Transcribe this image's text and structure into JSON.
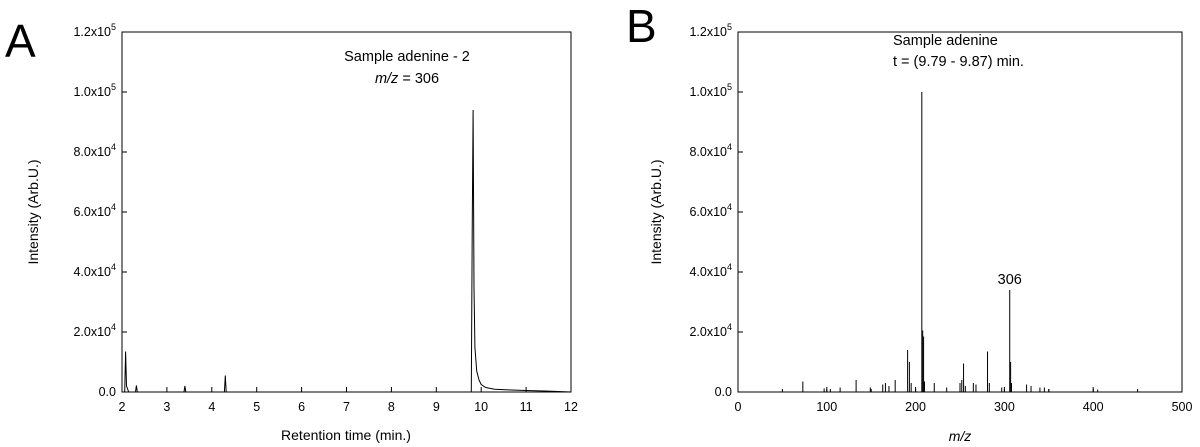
{
  "chart_data": [
    {
      "panel": "A",
      "type": "line",
      "title_lines": [
        "Sample adenine - 2",
        "m/z = 306"
      ],
      "xlabel": "Retention time (min.)",
      "ylabel": "Intensity (Arb.U.)",
      "xlim": [
        2,
        12
      ],
      "ylim": [
        0,
        120000
      ],
      "x_ticks": [
        "2",
        "3",
        "4",
        "5",
        "6",
        "7",
        "8",
        "9",
        "10",
        "11",
        "12"
      ],
      "y_ticks": [
        {
          "value": 0,
          "label": "0.0"
        },
        {
          "value": 20000,
          "label": "2.0x10",
          "exp": "4"
        },
        {
          "value": 40000,
          "label": "4.0x10",
          "exp": "4"
        },
        {
          "value": 60000,
          "label": "6.0x10",
          "exp": "4"
        },
        {
          "value": 80000,
          "label": "8.0x10",
          "exp": "4"
        },
        {
          "value": 100000,
          "label": "1.0x10",
          "exp": "5"
        },
        {
          "value": 120000,
          "label": "1.2x10",
          "exp": "5"
        }
      ],
      "series": [
        {
          "x": [
            2.0,
            2.06,
            2.08,
            2.1,
            2.15,
            2.3,
            2.32,
            2.34,
            3.38,
            3.4,
            3.42,
            4.28,
            4.3,
            4.32,
            4.6,
            9.78,
            9.8,
            9.82,
            9.84,
            9.86,
            9.9,
            9.95,
            10.0,
            10.1,
            10.3,
            10.6,
            11.0,
            11.5,
            12.0
          ],
          "y": [
            0,
            0,
            13500,
            2000,
            0,
            0,
            2200,
            0,
            0,
            2000,
            0,
            0,
            5500,
            0,
            0,
            0,
            53000,
            94000,
            35000,
            15000,
            7000,
            4000,
            2500,
            1500,
            900,
            700,
            500,
            300,
            0
          ]
        }
      ]
    },
    {
      "panel": "B",
      "type": "bar",
      "title_lines": [
        "Sample adenine",
        "t = (9.79 - 9.87) min."
      ],
      "annotation": {
        "text": "306",
        "x": 306,
        "y": 34000
      },
      "xlabel": "m/z",
      "ylabel": "Intensity (Arb.U.)",
      "xlim": [
        0,
        500
      ],
      "ylim": [
        0,
        120000
      ],
      "x_ticks": [
        "0",
        "100",
        "200",
        "300",
        "400",
        "500"
      ],
      "y_ticks": [
        {
          "value": 0,
          "label": "0.0"
        },
        {
          "value": 20000,
          "label": "2.0x10",
          "exp": "4"
        },
        {
          "value": 40000,
          "label": "4.0x10",
          "exp": "4"
        },
        {
          "value": 60000,
          "label": "6.0x10",
          "exp": "4"
        },
        {
          "value": 80000,
          "label": "8.0x10",
          "exp": "4"
        },
        {
          "value": 100000,
          "label": "1.0x10",
          "exp": "5"
        },
        {
          "value": 120000,
          "label": "1.2x10",
          "exp": "5"
        }
      ],
      "peaks": {
        "mz": [
          73,
          97,
          104,
          115,
          133,
          149,
          163,
          166,
          170,
          177,
          191,
          193,
          195,
          207,
          208,
          209,
          210,
          221,
          235,
          250,
          252,
          254,
          256,
          265,
          268,
          281,
          283,
          297,
          306,
          307,
          308,
          325,
          330,
          340,
          345,
          350,
          405
        ],
        "intensity": [
          3500,
          1200,
          1000,
          1500,
          4000,
          1500,
          2500,
          3000,
          2000,
          4000,
          14000,
          10000,
          3000,
          100000,
          20500,
          18500,
          3500,
          3000,
          1500,
          3000,
          4000,
          9500,
          2000,
          3000,
          2500,
          13500,
          3000,
          1500,
          34000,
          10000,
          3000,
          2500,
          2000,
          1500,
          1500,
          1000,
          800
        ]
      }
    }
  ]
}
